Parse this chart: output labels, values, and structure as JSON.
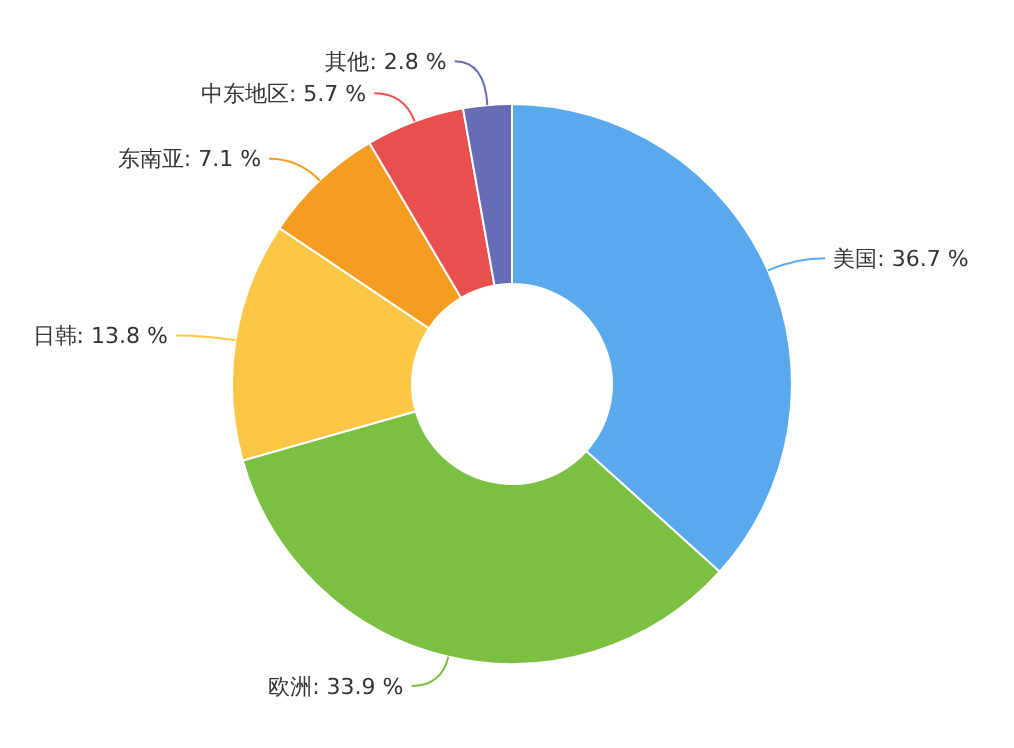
{
  "chart_data": {
    "type": "donut",
    "categories": [
      "美国",
      "欧洲",
      "日韩",
      "东南亚",
      "中东地区",
      "其他"
    ],
    "values": [
      36.7,
      33.9,
      13.8,
      7.1,
      5.7,
      2.8
    ],
    "value_labels": [
      "36.7 %",
      "33.9 %",
      "13.8 %",
      "7.1 %",
      "5.7 %",
      "2.8 %"
    ],
    "colors": [
      "#5aa9ec",
      "#7bbf43",
      "#fcc647",
      "#f59d20",
      "#ea4f50",
      "#676db5"
    ]
  }
}
